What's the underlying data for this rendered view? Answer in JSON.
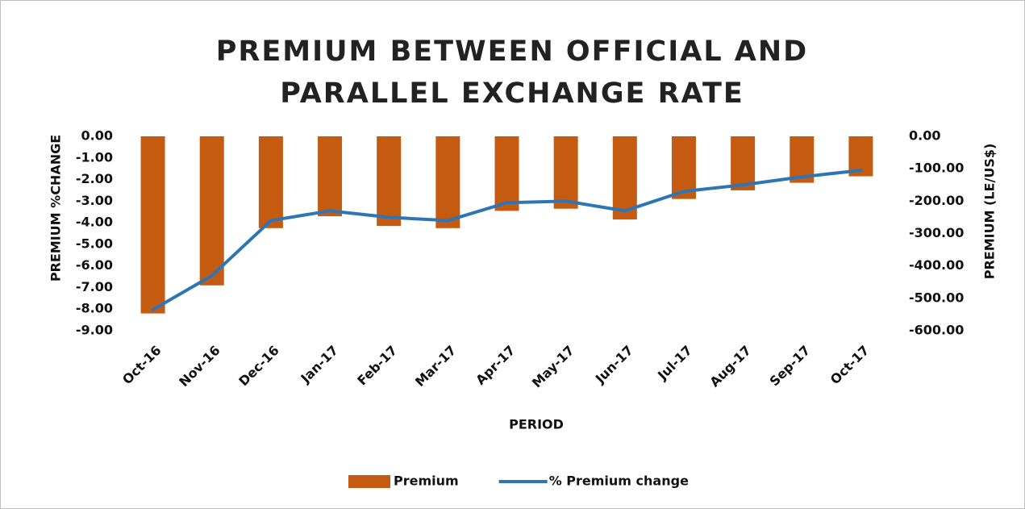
{
  "chart_data": {
    "type": "bar",
    "title": "PREMIUM BETWEEN OFFICIAL AND PARALLEL EXCHANGE RATE",
    "x_label": "PERIOD",
    "y_label": "PREMIUM %CHANGE",
    "y2_label": "PREMIUM (LE/US$)",
    "categories": [
      "Oct-16",
      "Nov-16",
      "Dec-16",
      "Jan-17",
      "Feb-17",
      "Mar-17",
      "Apr-17",
      "May-17",
      "Jun-17",
      "Jul-17",
      "Aug-17",
      "Sep-17",
      "Oct-17"
    ],
    "series": [
      {
        "name": "Premium",
        "type": "bar",
        "color": "#c55a11",
        "values": [
          -8.2,
          -6.9,
          -4.25,
          -3.7,
          -4.15,
          -4.25,
          -3.45,
          -3.35,
          -3.85,
          -2.9,
          -2.5,
          -2.15,
          -1.85
        ]
      },
      {
        "name": "% Premium change",
        "type": "line",
        "axis": "y2",
        "color": "#2e75b6",
        "values": [
          -535,
          -430,
          -260,
          -230,
          -250,
          -260,
          -205,
          -200,
          -230,
          -170,
          -150,
          -125,
          -105
        ]
      }
    ],
    "ylim": [
      -9,
      0
    ],
    "yticks": [
      {
        "value": 0,
        "label": "0.00"
      },
      {
        "value": -1,
        "label": "-1.00"
      },
      {
        "value": -2,
        "label": "-2.00"
      },
      {
        "value": -3,
        "label": "-3.00"
      },
      {
        "value": -4,
        "label": "-4.00"
      },
      {
        "value": -5,
        "label": "-5.00"
      },
      {
        "value": -6,
        "label": "-6.00"
      },
      {
        "value": -7,
        "label": "-7.00"
      },
      {
        "value": -8,
        "label": "-8.00"
      },
      {
        "value": -9,
        "label": "-9.00"
      }
    ],
    "y2lim": [
      -600,
      0
    ],
    "y2ticks": [
      {
        "value": 0,
        "label": "0.00"
      },
      {
        "value": -100,
        "label": "-100.00"
      },
      {
        "value": -200,
        "label": "-200.00"
      },
      {
        "value": -300,
        "label": "-300.00"
      },
      {
        "value": -400,
        "label": "-400.00"
      },
      {
        "value": -500,
        "label": "-500.00"
      },
      {
        "value": -600,
        "label": "-600.00"
      }
    ],
    "legend": "bottom"
  }
}
